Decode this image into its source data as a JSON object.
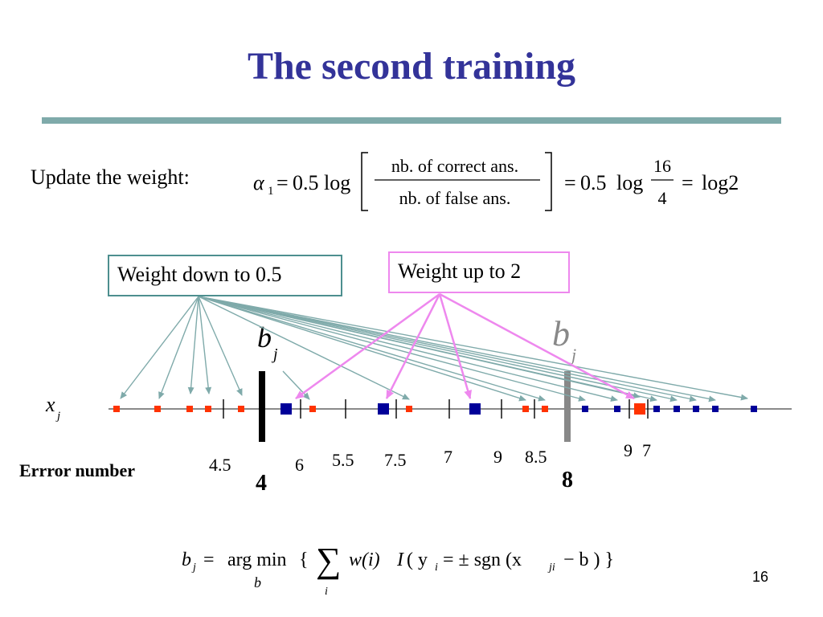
{
  "title": "The second training",
  "update": {
    "label": "Update the weight:",
    "alpha_sub": "1",
    "coef": "0.5",
    "log": "log",
    "numerator": "nb. of correct ans.",
    "denominator": "nb. of false ans.",
    "mid_coef": "0.5",
    "mid_num": "16",
    "mid_den": "4",
    "result": "log2"
  },
  "boxes": {
    "weight_down": "Weight down to 0.5",
    "weight_up": "Weight up to 2"
  },
  "axis": {
    "var": "x",
    "var_sub": "j"
  },
  "thresholds": {
    "symbol": "b",
    "sub": "j"
  },
  "error_label": "Errror number",
  "errors": [
    "4.5",
    "6",
    "5.5",
    "7.5",
    "7",
    "9",
    "8.5",
    "9",
    "7"
  ],
  "big_errors": [
    "4",
    "8"
  ],
  "argmin": {
    "lhs": "b",
    "lhs_sub": "j",
    "argmin": "arg min",
    "under": "b",
    "brace_open": "{",
    "sum_sub": "i",
    "w": "w(i)",
    "I": "I",
    "body": "( y",
    "y_sub": "i",
    "eq": "= ± sgn (x",
    "x_sub": "ji",
    "tail": "− b ) }"
  },
  "page_number": "16",
  "colors": {
    "title": "#333399",
    "rule": "#7faaaa",
    "teal": "#4d8f8f",
    "pink": "#ee88ee",
    "red": "#ff3300",
    "blue": "#000099",
    "gray": "#888888"
  },
  "points": {
    "red": [
      145,
      196,
      236,
      259,
      300,
      389,
      509,
      654,
      678,
      796
    ],
    "blue_large": [
      356,
      477,
      591
    ],
    "blue_small": [
      728,
      768,
      817,
      842,
      866,
      890,
      938
    ]
  }
}
